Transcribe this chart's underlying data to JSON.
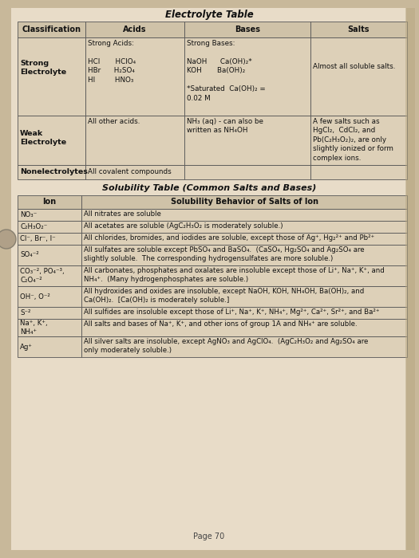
{
  "bg_color": "#c8b89a",
  "paper_color": "#e8dcc8",
  "table_fill": "#ddd0b8",
  "header_fill": "#cfc2a8",
  "border_color": "#555555",
  "text_color": "#111111",
  "electrolyte_title": "Electrolyte Table",
  "electrolyte_headers": [
    "Classification",
    "Acids",
    "Bases",
    "Salts"
  ],
  "e_row0_class": "Strong\nElectrolyte",
  "e_row0_acids": "Strong Acids:\n\nHCl       HClO₄\nHBr      H₂SO₄\nHI         HNO₃",
  "e_row0_bases": "Strong Bases:\n\nNaOH      Ca(OH)₂*\nKOH       Ba(OH)₂\n\n*Saturated  Ca(OH)₂ =\n0.02 M",
  "e_row0_salts": "Almost all soluble salts.",
  "e_row1_class": "Weak\nElectrolyte",
  "e_row1_acids": "All other acids.",
  "e_row1_bases": "NH₃ (aq) - can also be\nwritten as NH₄OH",
  "e_row1_salts": "A few salts such as\nHgCl₂,  CdCl₂, and\nPb(C₂H₃O₂)₂, are only\nslightly ionized or form\ncomplex ions.",
  "e_row2_class": "Nonelectrolytes",
  "e_row2_acids": "All covalent compounds",
  "solubility_title": "Solubility Table (Common Salts and Bases)",
  "solubility_headers": [
    "Ion",
    "Solubility Behavior of Salts of Ion"
  ],
  "s_ions": [
    "NO₃⁻",
    "C₂H₃O₂⁻",
    "Cl⁻, Br⁻, I⁻",
    "SO₄⁻²",
    "CO₃⁻², PO₄⁻³,\nC₂O₄⁻²",
    "OH⁻, O⁻²",
    "S⁻²",
    "Na⁺, K⁺,\nNH₄⁺",
    "Ag⁺"
  ],
  "s_behaviors": [
    "All nitrates are soluble",
    "All acetates are soluble (AgC₂H₃O₂ is moderately soluble.)",
    "All chlorides, bromides, and iodides are soluble, except those of Ag⁺, Hg₂²⁺ and Pb²⁺",
    "All sulfates are soluble except PbSO₄ and BaSO₄.  (CaSO₄, Hg₂SO₄ and Ag₂SO₄ are\nslightly soluble.  The corresponding hydrogensulfates are more soluble.)",
    "All carbonates, phosphates and oxalates are insoluble except those of Li⁺, Na⁺, K⁺, and\nNH₄⁺.  (Many hydrogenphosphates are soluble.)",
    "All hydroxides and oxides are insoluble, except NaOH, KOH, NH₄OH, Ba(OH)₂, and\nCa(OH)₂.  [Ca(OH)₂ is moderately soluble.]",
    "All sulfides are insoluble except those of Li⁺, Na⁺, K⁺, NH₄⁺, Mg²⁺, Ca²⁺, Sr²⁺, and Ba²⁺",
    "All salts and bases of Na⁺, K⁺, and other ions of group 1A and NH₄⁺ are soluble.",
    "All silver salts are insoluble, except AgNO₃ and AgClO₄.  (AgC₂H₃O₂ and Ag₂SO₄ are\nonly moderately soluble.)"
  ],
  "page_text": "Page 70"
}
